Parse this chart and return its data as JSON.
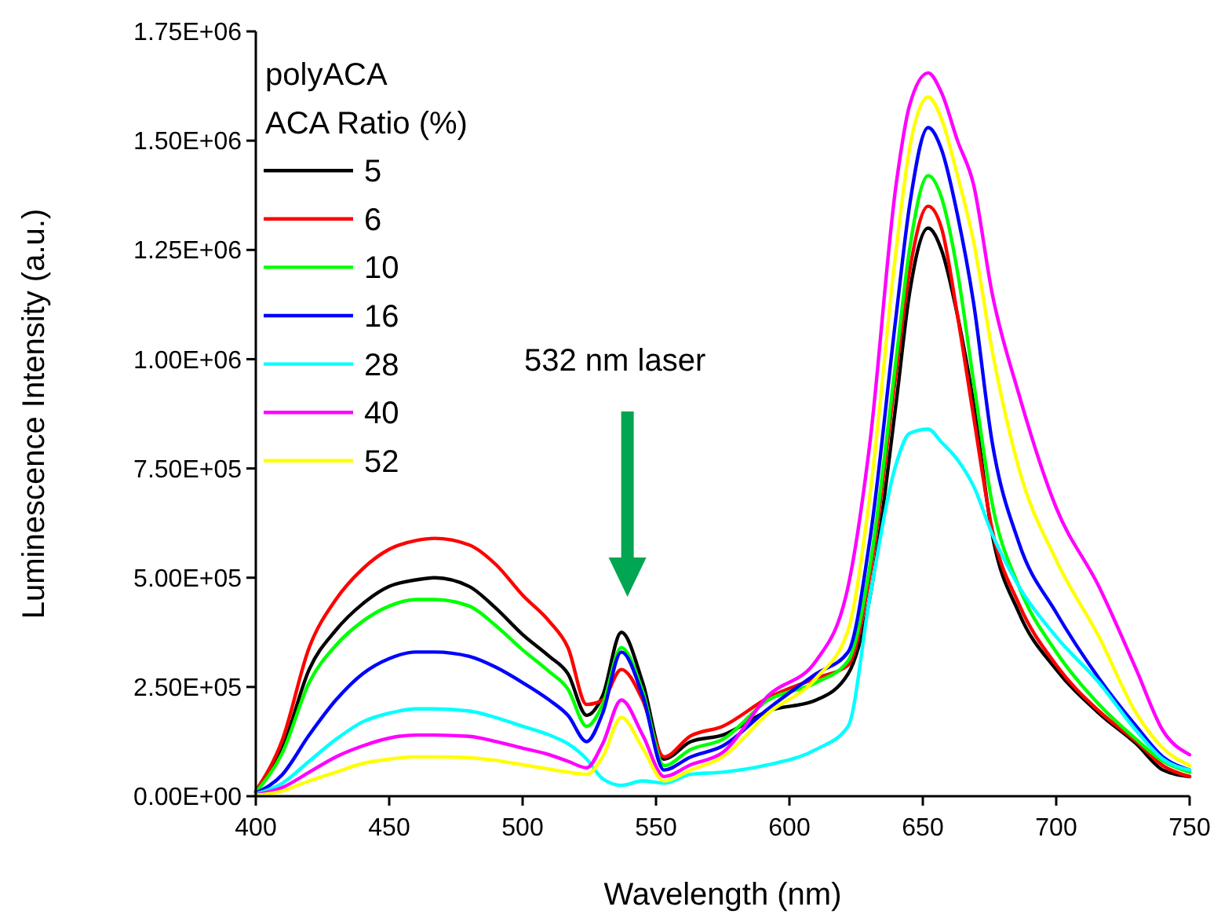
{
  "chart_data": {
    "type": "line",
    "xlabel": "Wavelength (nm)",
    "ylabel": "Luminescence Intensity (a.u.)",
    "legend_title": "polyACA\nACA Ratio (%)",
    "legend": "top left",
    "grid": false,
    "marker": "none",
    "line_style": "solid",
    "xlim": [
      400,
      750
    ],
    "xticks": [
      400,
      450,
      500,
      550,
      600,
      650,
      700,
      750
    ],
    "ylim": [
      0,
      1750000
    ],
    "yticks": [
      {
        "value": 0,
        "label": "0.00E+00"
      },
      {
        "value": 250000,
        "label": "2.50E+05"
      },
      {
        "value": 500000,
        "label": "5.00E+05"
      },
      {
        "value": 750000,
        "label": "7.50E+05"
      },
      {
        "value": 1000000,
        "label": "1.00E+06"
      },
      {
        "value": 1250000,
        "label": "1.25E+06"
      },
      {
        "value": 1500000,
        "label": "1.50E+06"
      },
      {
        "value": 1750000,
        "label": "1.75E+06"
      }
    ],
    "annotations": [
      "532 nm laser"
    ],
    "x": [
      400,
      410,
      420,
      430,
      440,
      450,
      460,
      467,
      480,
      490,
      500,
      510,
      517,
      524,
      530,
      537,
      545,
      553,
      563,
      575,
      592,
      610,
      622,
      630,
      640,
      645,
      652,
      657,
      663,
      669,
      676,
      686,
      700,
      716,
      730,
      740,
      750
    ],
    "series": [
      {
        "name": "5",
        "color": "#000000",
        "values": [
          10000,
          110000,
          290000,
          380000,
          440000,
          480000,
          495000,
          500000,
          480000,
          430000,
          370000,
          320000,
          280000,
          185000,
          230000,
          375000,
          260000,
          85000,
          125000,
          140000,
          195000,
          220000,
          280000,
          450000,
          900000,
          1150000,
          1300000,
          1250000,
          1100000,
          900000,
          600000,
          420000,
          290000,
          190000,
          120000,
          60000,
          45000
        ]
      },
      {
        "name": "6",
        "color": "#ff0000",
        "values": [
          12000,
          130000,
          340000,
          450000,
          520000,
          565000,
          585000,
          590000,
          575000,
          530000,
          460000,
          400000,
          340000,
          210000,
          220000,
          290000,
          220000,
          90000,
          138000,
          160000,
          225000,
          270000,
          300000,
          500000,
          970000,
          1200000,
          1350000,
          1300000,
          1100000,
          870000,
          610000,
          440000,
          300000,
          195000,
          125000,
          70000,
          45000
        ]
      },
      {
        "name": "10",
        "color": "#00ff00",
        "values": [
          9000,
          100000,
          260000,
          345000,
          400000,
          435000,
          450000,
          450000,
          435000,
          390000,
          335000,
          285000,
          245000,
          160000,
          210000,
          340000,
          240000,
          70000,
          107000,
          130000,
          220000,
          260000,
          310000,
          520000,
          1000000,
          1250000,
          1420000,
          1370000,
          1200000,
          950000,
          670000,
          480000,
          330000,
          210000,
          130000,
          80000,
          55000
        ]
      },
      {
        "name": "16",
        "color": "#0000ff",
        "values": [
          7000,
          50000,
          140000,
          220000,
          280000,
          315000,
          330000,
          330000,
          320000,
          295000,
          260000,
          220000,
          185000,
          125000,
          190000,
          330000,
          230000,
          60000,
          90000,
          115000,
          200000,
          280000,
          330000,
          580000,
          1100000,
          1350000,
          1530000,
          1480000,
          1330000,
          1130000,
          810000,
          580000,
          420000,
          270000,
          160000,
          90000,
          60000
        ]
      },
      {
        "name": "28",
        "color": "#00ffff",
        "values": [
          5000,
          30000,
          80000,
          130000,
          170000,
          190000,
          200000,
          200000,
          195000,
          180000,
          160000,
          140000,
          120000,
          85000,
          40000,
          25000,
          35000,
          30000,
          50000,
          55000,
          72000,
          107000,
          160000,
          450000,
          760000,
          830000,
          840000,
          810000,
          770000,
          710000,
          600000,
          480000,
          365000,
          260000,
          150000,
          85000,
          60000
        ]
      },
      {
        "name": "40",
        "color": "#ff00ff",
        "values": [
          3000,
          20000,
          55000,
          90000,
          115000,
          133000,
          140000,
          140000,
          137000,
          125000,
          110000,
          95000,
          80000,
          65000,
          120000,
          220000,
          140000,
          45000,
          72000,
          100000,
          230000,
          310000,
          480000,
          800000,
          1400000,
          1580000,
          1655000,
          1610000,
          1500000,
          1400000,
          1150000,
          920000,
          660000,
          480000,
          290000,
          150000,
          95000
        ]
      },
      {
        "name": "52",
        "color": "#ffff00",
        "values": [
          2000,
          12000,
          35000,
          55000,
          75000,
          85000,
          90000,
          90000,
          88000,
          82000,
          72000,
          62000,
          55000,
          50000,
          90000,
          180000,
          110000,
          35000,
          60000,
          90000,
          190000,
          270000,
          380000,
          680000,
          1250000,
          1480000,
          1600000,
          1550000,
          1420000,
          1270000,
          1020000,
          750000,
          540000,
          365000,
          190000,
          110000,
          70000
        ]
      }
    ]
  }
}
